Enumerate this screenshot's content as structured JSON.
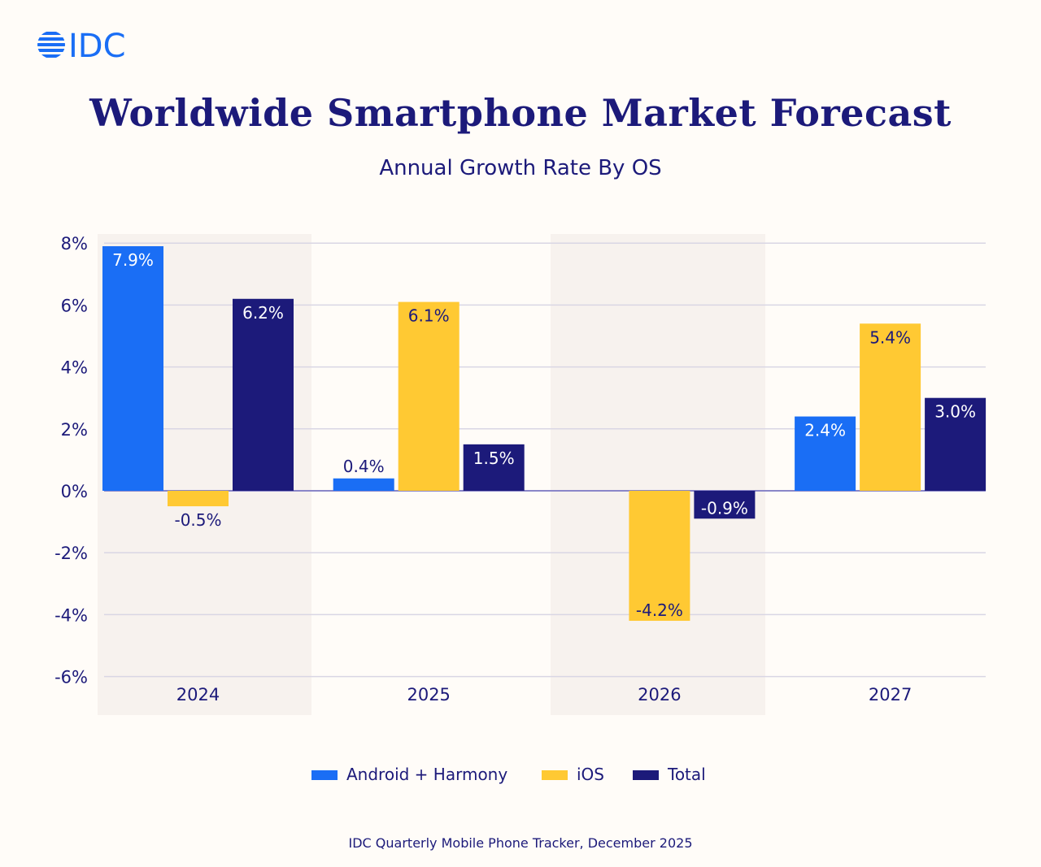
{
  "logo": {
    "text": "IDC",
    "color": "#1a6ef5"
  },
  "header": {
    "title": "Worldwide Smartphone Market Forecast",
    "subtitle": "Annual Growth Rate By OS"
  },
  "footer": {
    "source": "IDC Quarterly Mobile Phone Tracker, December 2025"
  },
  "chart_data": {
    "type": "bar",
    "title": "Worldwide Smartphone Market Forecast",
    "subtitle": "Annual Growth Rate By OS",
    "categories": [
      "2024",
      "2025",
      "2026",
      "2027"
    ],
    "ylim": [
      -6,
      8
    ],
    "yticks": [
      8,
      6,
      4,
      2,
      0,
      -2,
      -4,
      -6
    ],
    "ytick_labels": [
      "8%",
      "6%",
      "4%",
      "2%",
      "0%",
      "-2%",
      "-4%",
      "-6%"
    ],
    "grid": true,
    "legend_placement": "bottom",
    "shaded_categories": [
      "2024",
      "2026"
    ],
    "series": [
      {
        "name": "Android + Harmony",
        "color": "#1a6ef5",
        "values": [
          7.9,
          0.4,
          0.0,
          2.4
        ],
        "labels": [
          "7.9%",
          "0.4%",
          "",
          "2.4%"
        ]
      },
      {
        "name": "iOS",
        "color": "#ffc933",
        "values": [
          -0.5,
          6.1,
          -4.2,
          5.4
        ],
        "labels": [
          "-0.5%",
          "6.1%",
          "-4.2%",
          "5.4%"
        ]
      },
      {
        "name": "Total",
        "color": "#1c1a7a",
        "values": [
          6.2,
          1.5,
          -0.9,
          3.0
        ],
        "labels": [
          "6.2%",
          "1.5%",
          "-0.9%",
          "3.0%"
        ]
      }
    ]
  }
}
